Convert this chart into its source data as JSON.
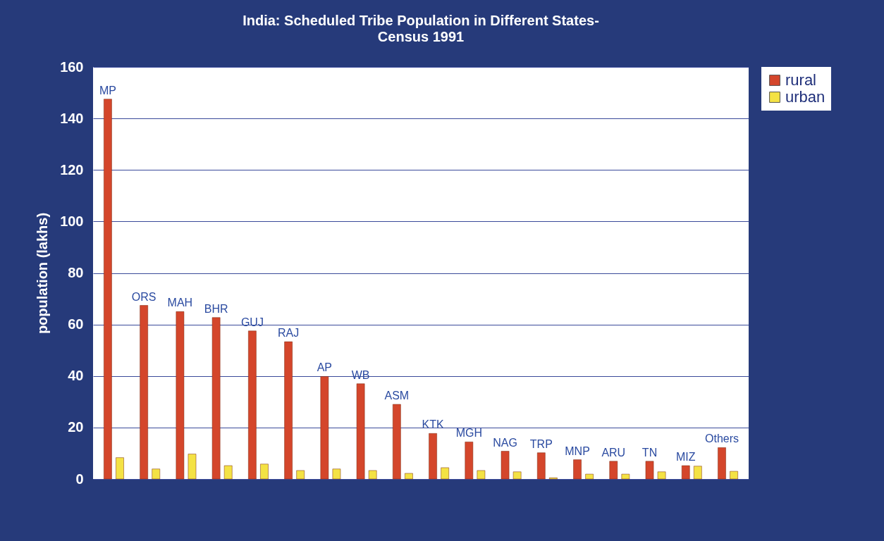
{
  "chart_data": {
    "type": "bar",
    "title": "India: Scheduled Tribe Population in Different States-",
    "subtitle": "Census 1991",
    "ylabel": "population (lakhs)",
    "categories": [
      "MP",
      "ORS",
      "MAH",
      "BHR",
      "GUJ",
      "RAJ",
      "AP",
      "WB",
      "ASM",
      "KTK",
      "MGH",
      "NAG",
      "TRP",
      "MNP",
      "ARU",
      "TN",
      "MIZ",
      "Others"
    ],
    "series": [
      {
        "name": "rural",
        "color": "#d4462b",
        "values": [
          147.5,
          67.4,
          65,
          62.7,
          57.5,
          53.3,
          39.8,
          37,
          29,
          17.7,
          14.4,
          10.8,
          10.2,
          7.5,
          6.9,
          6.9,
          5.2,
          12.2
        ]
      },
      {
        "name": "urban",
        "color": "#f4e244",
        "values": [
          8.3,
          3.9,
          9.7,
          5.2,
          5.8,
          3.3,
          3.9,
          3.3,
          2.2,
          4.4,
          3.3,
          2.8,
          0.5,
          1.9,
          1.9,
          2.8,
          5,
          3
        ]
      }
    ],
    "ylim": [
      0,
      160
    ],
    "yticks": [
      0,
      20,
      40,
      60,
      80,
      100,
      120,
      140,
      160
    ],
    "grid": "y",
    "legend": "right",
    "tick_labels": "y"
  }
}
